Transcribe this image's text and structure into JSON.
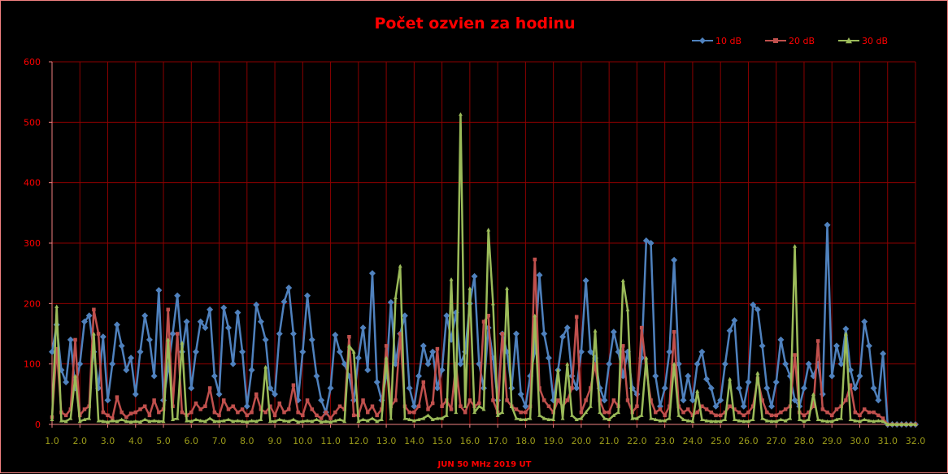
{
  "chart_data": {
    "type": "line",
    "title": "Počet ozvien za hodinu",
    "xlabel": "JUN 50 MHz   2019  UT",
    "ylabel": "",
    "xlim": [
      1.0,
      32.0
    ],
    "ylim": [
      0,
      600
    ],
    "x_start": 1.0,
    "x_step": 0.16667,
    "xticks": [
      "1.0",
      "2.0",
      "3.0",
      "4.0",
      "5.0",
      "6.0",
      "7.0",
      "8.0",
      "9.0",
      "10.0",
      "11.0",
      "12.0",
      "13.0",
      "14.0",
      "15.0",
      "16.0",
      "17.0",
      "18.0",
      "19.0",
      "20.0",
      "21.0",
      "22.0",
      "23.0",
      "24.0",
      "25.0",
      "26.0",
      "27.0",
      "28.0",
      "29.0",
      "30.0",
      "31.0",
      "32.0"
    ],
    "yticks": [
      "0",
      "100",
      "200",
      "300",
      "400",
      "500",
      "600"
    ],
    "grid": true,
    "legend_position": "top-right",
    "series": [
      {
        "name": "10 dB",
        "color": "#4f81bd",
        "marker": "diamond",
        "values": [
          120,
          165,
          90,
          70,
          140,
          60,
          100,
          170,
          180,
          120,
          60,
          145,
          40,
          100,
          165,
          130,
          90,
          110,
          50,
          120,
          180,
          140,
          80,
          222,
          40,
          90,
          150,
          213,
          120,
          170,
          60,
          120,
          170,
          160,
          190,
          80,
          50,
          193,
          160,
          100,
          185,
          120,
          30,
          90,
          198,
          170,
          140,
          60,
          50,
          150,
          203,
          226,
          150,
          40,
          120,
          213,
          140,
          80,
          40,
          20,
          60,
          148,
          120,
          100,
          80,
          40,
          110,
          160,
          90,
          250,
          70,
          40,
          80,
          202,
          100,
          150,
          180,
          60,
          30,
          80,
          130,
          100,
          120,
          60,
          90,
          180,
          140,
          185,
          100,
          120,
          200,
          245,
          100,
          60,
          160,
          110,
          40,
          150,
          120,
          60,
          150,
          50,
          30,
          80,
          120,
          247,
          150,
          110,
          40,
          90,
          145,
          160,
          80,
          60,
          120,
          238,
          120,
          110,
          60,
          40,
          100,
          153,
          120,
          80,
          120,
          60,
          50,
          110,
          304,
          300,
          80,
          30,
          60,
          120,
          272,
          100,
          40,
          80,
          40,
          100,
          120,
          75,
          60,
          30,
          40,
          100,
          155,
          172,
          60,
          30,
          70,
          198,
          190,
          130,
          60,
          30,
          70,
          140,
          100,
          80,
          40,
          30,
          60,
          100,
          80,
          100,
          50,
          330,
          80,
          130,
          100,
          158,
          90,
          60,
          80,
          170,
          130,
          60,
          40,
          117,
          0,
          0,
          0,
          0,
          0,
          0,
          0
        ]
      },
      {
        "name": "20 dB",
        "color": "#c0504d",
        "marker": "square",
        "values": [
          12,
          125,
          20,
          15,
          25,
          140,
          15,
          25,
          30,
          190,
          150,
          20,
          15,
          10,
          45,
          20,
          12,
          18,
          20,
          25,
          30,
          15,
          40,
          20,
          25,
          190,
          30,
          150,
          20,
          15,
          20,
          35,
          25,
          30,
          60,
          20,
          15,
          40,
          25,
          30,
          20,
          25,
          15,
          20,
          50,
          25,
          20,
          30,
          15,
          35,
          20,
          25,
          65,
          20,
          15,
          40,
          25,
          15,
          10,
          20,
          10,
          20,
          30,
          25,
          145,
          15,
          15,
          40,
          20,
          30,
          15,
          25,
          130,
          30,
          40,
          150,
          30,
          20,
          20,
          30,
          70,
          25,
          35,
          125,
          30,
          40,
          25,
          100,
          30,
          20,
          40,
          30,
          35,
          170,
          180,
          40,
          20,
          150,
          40,
          30,
          25,
          20,
          20,
          30,
          273,
          60,
          40,
          30,
          20,
          40,
          30,
          40,
          60,
          178,
          20,
          40,
          60,
          100,
          40,
          20,
          20,
          40,
          30,
          130,
          40,
          20,
          30,
          160,
          90,
          40,
          20,
          25,
          15,
          30,
          153,
          30,
          20,
          25,
          15,
          20,
          30,
          25,
          20,
          15,
          15,
          20,
          30,
          25,
          20,
          15,
          20,
          30,
          75,
          40,
          20,
          15,
          15,
          20,
          25,
          30,
          115,
          20,
          15,
          20,
          30,
          138,
          25,
          20,
          15,
          25,
          30,
          40,
          65,
          20,
          15,
          25,
          20,
          20,
          15,
          10,
          0,
          0,
          0,
          0,
          0,
          0,
          0
        ]
      },
      {
        "name": "30 dB",
        "color": "#9bbb59",
        "marker": "triangle",
        "values": [
          8,
          195,
          6,
          5,
          10,
          80,
          5,
          8,
          10,
          150,
          6,
          5,
          4,
          6,
          5,
          8,
          5,
          4,
          5,
          4,
          8,
          5,
          6,
          5,
          5,
          140,
          8,
          10,
          135,
          6,
          5,
          8,
          6,
          5,
          10,
          5,
          5,
          6,
          8,
          5,
          6,
          5,
          4,
          6,
          5,
          8,
          95,
          5,
          5,
          8,
          6,
          5,
          8,
          4,
          5,
          6,
          5,
          8,
          4,
          5,
          4,
          6,
          8,
          5,
          130,
          120,
          5,
          8,
          6,
          10,
          5,
          8,
          110,
          10,
          210,
          262,
          10,
          8,
          6,
          8,
          10,
          15,
          8,
          10,
          10,
          15,
          240,
          20,
          513,
          30,
          225,
          20,
          30,
          25,
          322,
          200,
          15,
          20,
          225,
          30,
          10,
          8,
          8,
          10,
          180,
          15,
          10,
          8,
          8,
          90,
          10,
          100,
          15,
          8,
          10,
          20,
          30,
          155,
          20,
          10,
          8,
          15,
          20,
          238,
          190,
          10,
          10,
          15,
          110,
          10,
          8,
          6,
          6,
          10,
          100,
          15,
          8,
          6,
          5,
          55,
          8,
          6,
          5,
          5,
          5,
          8,
          75,
          8,
          6,
          5,
          5,
          8,
          85,
          10,
          6,
          5,
          5,
          8,
          6,
          10,
          295,
          8,
          5,
          8,
          50,
          8,
          6,
          5,
          5,
          8,
          10,
          150,
          8,
          6,
          5,
          8,
          6,
          5,
          6,
          5,
          0,
          0,
          0,
          0,
          0,
          0,
          0
        ]
      }
    ]
  }
}
